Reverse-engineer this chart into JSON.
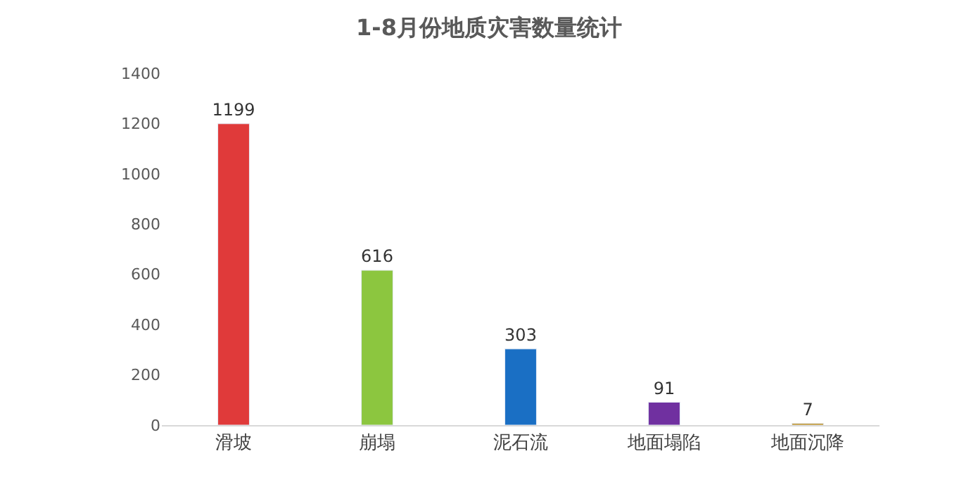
{
  "chart_data": {
    "type": "bar",
    "title": "1-8月份地质灾害数量统计",
    "categories": [
      "滑坡",
      "崩塌",
      "泥石流",
      "地面塌陷",
      "地面沉降"
    ],
    "values": [
      1199,
      616,
      303,
      91,
      7
    ],
    "colors": [
      "#e03a3a",
      "#8cc63f",
      "#1a6fc4",
      "#7030a0",
      "#c09020"
    ],
    "ylim": [
      0,
      1400
    ],
    "yticks": [
      0,
      200,
      400,
      600,
      800,
      1000,
      1200,
      1400
    ],
    "data_labels": true
  }
}
